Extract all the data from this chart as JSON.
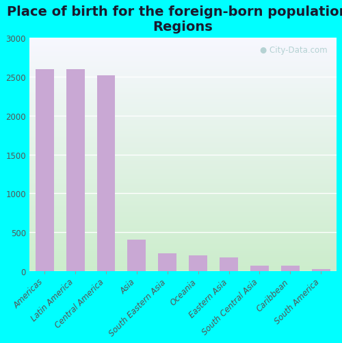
{
  "title": "Place of birth for the foreign-born population -\nRegions",
  "categories": [
    "Americas",
    "Latin America",
    "Central America",
    "Asia",
    "South Eastern Asia",
    "Oceania",
    "Eastern Asia",
    "South Central Asia",
    "Caribbean",
    "South America"
  ],
  "values": [
    2600,
    2600,
    2520,
    400,
    230,
    195,
    170,
    65,
    65,
    25
  ],
  "bar_color": "#c9a8d4",
  "bg_outer": "#00ffff",
  "bg_plot_top": "#f0faf0",
  "bg_plot_bottom": "#c8e6c9",
  "ylabel_vals": [
    0,
    500,
    1000,
    1500,
    2000,
    2500,
    3000
  ],
  "ylim": [
    0,
    3000
  ],
  "title_fontsize": 14,
  "tick_fontsize": 8.5,
  "watermark": "City-Data.com"
}
